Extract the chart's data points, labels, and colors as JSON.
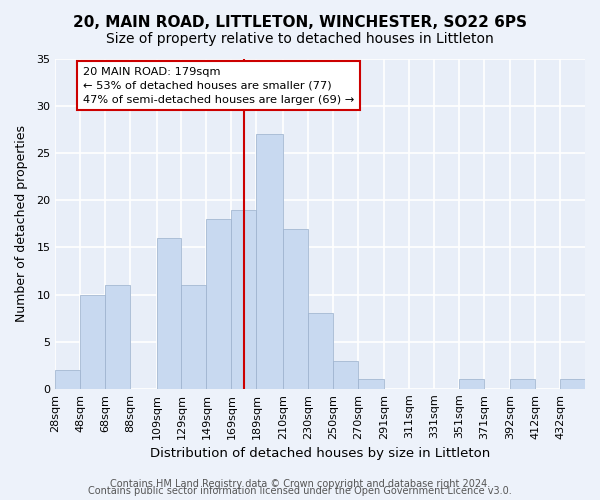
{
  "title": "20, MAIN ROAD, LITTLETON, WINCHESTER, SO22 6PS",
  "subtitle": "Size of property relative to detached houses in Littleton",
  "xlabel": "Distribution of detached houses by size in Littleton",
  "ylabel": "Number of detached properties",
  "bar_color": "#c8d9f0",
  "bar_edge_color": "#9ab0cc",
  "background_color": "#e8eef8",
  "fig_background_color": "#edf2fa",
  "grid_color": "#ffffff",
  "bin_edges": [
    28,
    48,
    68,
    88,
    109,
    129,
    149,
    169,
    189,
    210,
    230,
    250,
    270,
    291,
    311,
    331,
    351,
    371,
    392,
    412,
    432,
    452
  ],
  "bin_labels": [
    "28sqm",
    "48sqm",
    "68sqm",
    "88sqm",
    "109sqm",
    "129sqm",
    "149sqm",
    "169sqm",
    "189sqm",
    "210sqm",
    "230sqm",
    "250sqm",
    "270sqm",
    "291sqm",
    "311sqm",
    "331sqm",
    "351sqm",
    "371sqm",
    "392sqm",
    "412sqm",
    "432sqm"
  ],
  "counts": [
    2,
    10,
    11,
    0,
    16,
    11,
    18,
    19,
    27,
    17,
    8,
    3,
    1,
    0,
    0,
    0,
    1,
    0,
    1,
    0,
    1
  ],
  "property_value": 179,
  "vline_color": "#cc0000",
  "annotation_text": "20 MAIN ROAD: 179sqm\n← 53% of detached houses are smaller (77)\n47% of semi-detached houses are larger (69) →",
  "annotation_box_color": "#ffffff",
  "annotation_box_edge_color": "#cc0000",
  "ylim": [
    0,
    35
  ],
  "yticks": [
    0,
    5,
    10,
    15,
    20,
    25,
    30,
    35
  ],
  "footer_line1": "Contains HM Land Registry data © Crown copyright and database right 2024.",
  "footer_line2": "Contains public sector information licensed under the Open Government Licence v3.0.",
  "title_fontsize": 11,
  "subtitle_fontsize": 10,
  "xlabel_fontsize": 9.5,
  "ylabel_fontsize": 9,
  "tick_fontsize": 8,
  "footer_fontsize": 7
}
